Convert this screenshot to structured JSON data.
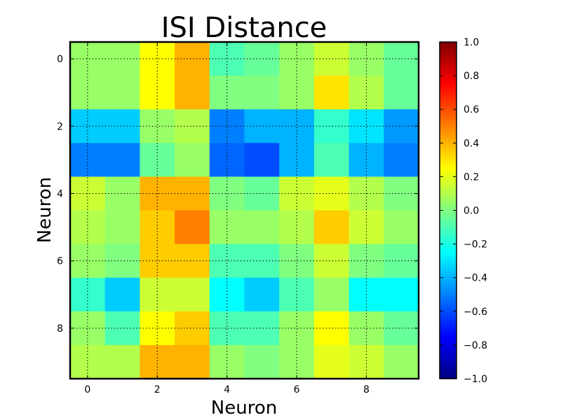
{
  "chart_data": {
    "type": "heatmap",
    "title": "ISI Distance",
    "xlabel": "Neuron",
    "ylabel": "Neuron",
    "x_ticks": [
      "0",
      "2",
      "4",
      "6",
      "8"
    ],
    "y_ticks": [
      "0",
      "2",
      "4",
      "6",
      "8"
    ],
    "x_tick_values": [
      0,
      2,
      4,
      6,
      8
    ],
    "y_tick_values": [
      0,
      2,
      4,
      6,
      8
    ],
    "x_range": [
      -0.5,
      9.5
    ],
    "y_range": [
      -0.5,
      9.5
    ],
    "grid": true,
    "colormap": "jet",
    "color_range": [
      -1.0,
      1.0
    ],
    "colorbar": {
      "ticks": [
        "1.0",
        "0.8",
        "0.6",
        "0.4",
        "0.2",
        "0.0",
        "−0.2",
        "−0.4",
        "−0.6",
        "−0.8",
        "−1.0"
      ],
      "tick_values": [
        1.0,
        0.8,
        0.6,
        0.4,
        0.2,
        0.0,
        -0.2,
        -0.4,
        -0.6,
        -0.8,
        -1.0
      ],
      "placement": "right"
    },
    "values": [
      [
        0.05,
        0.05,
        0.25,
        0.4,
        -0.1,
        -0.05,
        0.05,
        0.15,
        0.05,
        -0.05
      ],
      [
        0.05,
        0.05,
        0.25,
        0.4,
        0.0,
        0.0,
        0.05,
        0.3,
        0.1,
        -0.05
      ],
      [
        -0.35,
        -0.35,
        0.05,
        0.1,
        -0.5,
        -0.4,
        -0.4,
        -0.15,
        -0.3,
        -0.45
      ],
      [
        -0.5,
        -0.5,
        -0.05,
        0.05,
        -0.55,
        -0.6,
        -0.4,
        -0.1,
        -0.4,
        -0.5
      ],
      [
        0.15,
        0.05,
        0.4,
        0.4,
        0.0,
        -0.05,
        0.15,
        0.2,
        0.1,
        0.0
      ],
      [
        0.1,
        0.05,
        0.35,
        0.5,
        0.05,
        0.05,
        0.1,
        0.35,
        0.15,
        0.05
      ],
      [
        0.05,
        0.0,
        0.35,
        0.35,
        -0.1,
        -0.1,
        0.0,
        0.15,
        0.0,
        -0.05
      ],
      [
        -0.15,
        -0.35,
        0.15,
        0.15,
        -0.25,
        -0.35,
        -0.1,
        0.05,
        -0.25,
        -0.25
      ],
      [
        0.05,
        -0.1,
        0.25,
        0.35,
        -0.1,
        -0.1,
        0.05,
        0.25,
        0.05,
        -0.05
      ],
      [
        0.1,
        0.1,
        0.4,
        0.4,
        0.05,
        0.0,
        0.05,
        0.2,
        0.15,
        0.05
      ]
    ]
  }
}
